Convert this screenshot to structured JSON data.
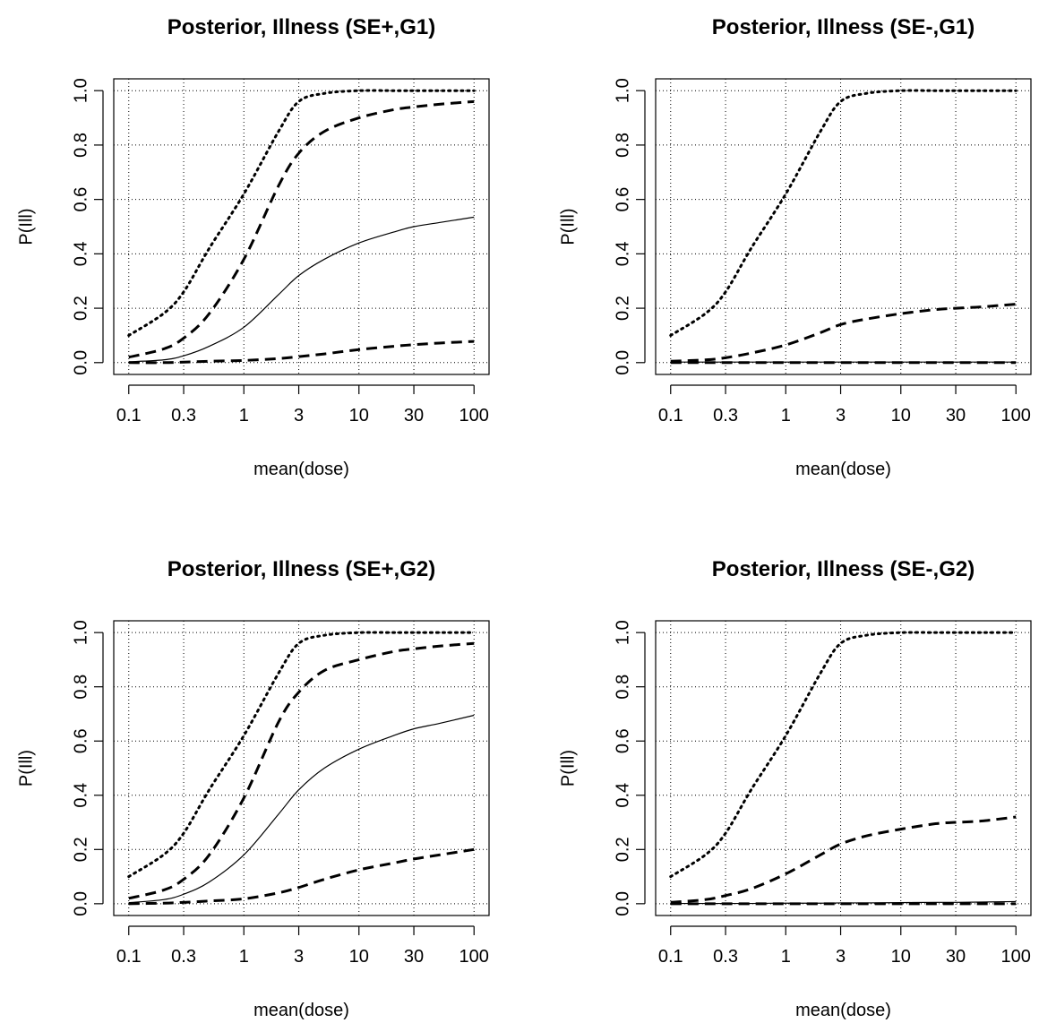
{
  "chart_data": [
    {
      "type": "line",
      "title": "Posterior, Illness (SE+,G1)",
      "xlabel": "mean(dose)",
      "ylabel": "P(Ill)",
      "xscale": "log",
      "xticks": [
        "0.1",
        "0.3",
        "1",
        "3",
        "10",
        "30",
        "100"
      ],
      "yticks": [
        "0.0",
        "0.2",
        "0.4",
        "0.6",
        "0.8",
        "1.0"
      ],
      "ylim": [
        0,
        1
      ],
      "grid": true,
      "x": [
        0.1,
        0.2,
        0.3,
        0.5,
        1,
        2,
        3,
        5,
        10,
        20,
        30,
        50,
        100
      ],
      "series": [
        {
          "style": "dotted",
          "values": [
            0.1,
            0.18,
            0.26,
            0.42,
            0.62,
            0.85,
            0.96,
            0.99,
            1.0,
            1.0,
            1.0,
            1.0,
            1.0
          ]
        },
        {
          "style": "dashed",
          "values": [
            0.02,
            0.05,
            0.09,
            0.18,
            0.38,
            0.65,
            0.77,
            0.85,
            0.9,
            0.93,
            0.94,
            0.95,
            0.96
          ]
        },
        {
          "style": "solid",
          "values": [
            0.003,
            0.01,
            0.025,
            0.06,
            0.13,
            0.25,
            0.32,
            0.38,
            0.44,
            0.48,
            0.5,
            0.515,
            0.535
          ]
        },
        {
          "style": "dashed",
          "values": [
            0.0,
            0.0,
            0.002,
            0.005,
            0.008,
            0.015,
            0.022,
            0.032,
            0.048,
            0.06,
            0.066,
            0.072,
            0.078
          ]
        }
      ]
    },
    {
      "type": "line",
      "title": "Posterior, Illness (SE-,G1)",
      "xlabel": "mean(dose)",
      "ylabel": "P(Ill)",
      "xscale": "log",
      "xticks": [
        "0.1",
        "0.3",
        "1",
        "3",
        "10",
        "30",
        "100"
      ],
      "yticks": [
        "0.0",
        "0.2",
        "0.4",
        "0.6",
        "0.8",
        "1.0"
      ],
      "ylim": [
        0,
        1
      ],
      "grid": true,
      "x": [
        0.1,
        0.2,
        0.3,
        0.5,
        1,
        2,
        3,
        5,
        10,
        20,
        30,
        50,
        100
      ],
      "series": [
        {
          "style": "dotted",
          "values": [
            0.1,
            0.18,
            0.26,
            0.42,
            0.62,
            0.85,
            0.96,
            0.99,
            1.0,
            1.0,
            1.0,
            1.0,
            1.0
          ]
        },
        {
          "style": "dashed",
          "values": [
            0.005,
            0.01,
            0.018,
            0.035,
            0.065,
            0.11,
            0.14,
            0.16,
            0.18,
            0.195,
            0.2,
            0.205,
            0.215
          ]
        },
        {
          "style": "solid",
          "values": [
            0.002,
            0.002,
            0.002,
            0.002,
            0.002,
            0.002,
            0.002,
            0.002,
            0.002,
            0.002,
            0.002,
            0.002,
            0.002
          ]
        },
        {
          "style": "dashed",
          "values": [
            0.0,
            0.0,
            0.0,
            0.0,
            0.0,
            0.0,
            0.0,
            0.0,
            0.0,
            0.0,
            0.0,
            0.0,
            0.0
          ]
        }
      ]
    },
    {
      "type": "line",
      "title": "Posterior, Illness (SE+,G2)",
      "xlabel": "mean(dose)",
      "ylabel": "P(Ill)",
      "xscale": "log",
      "xticks": [
        "0.1",
        "0.3",
        "1",
        "3",
        "10",
        "30",
        "100"
      ],
      "yticks": [
        "0.0",
        "0.2",
        "0.4",
        "0.6",
        "0.8",
        "1.0"
      ],
      "ylim": [
        0,
        1
      ],
      "grid": true,
      "x": [
        0.1,
        0.2,
        0.3,
        0.5,
        1,
        2,
        3,
        5,
        10,
        20,
        30,
        50,
        100
      ],
      "series": [
        {
          "style": "dotted",
          "values": [
            0.1,
            0.18,
            0.26,
            0.42,
            0.62,
            0.85,
            0.96,
            0.99,
            1.0,
            1.0,
            1.0,
            1.0,
            1.0
          ]
        },
        {
          "style": "dashed",
          "values": [
            0.02,
            0.05,
            0.09,
            0.18,
            0.39,
            0.67,
            0.78,
            0.86,
            0.9,
            0.93,
            0.94,
            0.95,
            0.96
          ]
        },
        {
          "style": "solid",
          "values": [
            0.004,
            0.015,
            0.035,
            0.08,
            0.18,
            0.33,
            0.42,
            0.5,
            0.57,
            0.62,
            0.645,
            0.665,
            0.695
          ]
        },
        {
          "style": "dashed",
          "values": [
            0.0,
            0.002,
            0.005,
            0.01,
            0.018,
            0.04,
            0.06,
            0.09,
            0.125,
            0.15,
            0.165,
            0.18,
            0.2
          ]
        }
      ]
    },
    {
      "type": "line",
      "title": "Posterior, Illness (SE-,G2)",
      "xlabel": "mean(dose)",
      "ylabel": "P(Ill)",
      "xscale": "log",
      "xticks": [
        "0.1",
        "0.3",
        "1",
        "3",
        "10",
        "30",
        "100"
      ],
      "yticks": [
        "0.0",
        "0.2",
        "0.4",
        "0.6",
        "0.8",
        "1.0"
      ],
      "ylim": [
        0,
        1
      ],
      "grid": true,
      "x": [
        0.1,
        0.2,
        0.3,
        0.5,
        1,
        2,
        3,
        5,
        10,
        20,
        30,
        50,
        100
      ],
      "series": [
        {
          "style": "dotted",
          "values": [
            0.1,
            0.18,
            0.26,
            0.42,
            0.62,
            0.85,
            0.96,
            0.99,
            1.0,
            1.0,
            1.0,
            1.0,
            1.0
          ]
        },
        {
          "style": "dashed",
          "values": [
            0.005,
            0.015,
            0.03,
            0.055,
            0.11,
            0.18,
            0.22,
            0.25,
            0.275,
            0.295,
            0.3,
            0.305,
            0.32
          ]
        },
        {
          "style": "solid",
          "values": [
            0.001,
            0.001,
            0.001,
            0.001,
            0.002,
            0.002,
            0.003,
            0.003,
            0.004,
            0.005,
            0.005,
            0.006,
            0.008
          ]
        },
        {
          "style": "dashed",
          "values": [
            0.0,
            0.0,
            0.0,
            0.0,
            0.0,
            0.0,
            0.0,
            0.0,
            0.0,
            0.0,
            0.0,
            0.0,
            0.0
          ]
        }
      ]
    }
  ]
}
